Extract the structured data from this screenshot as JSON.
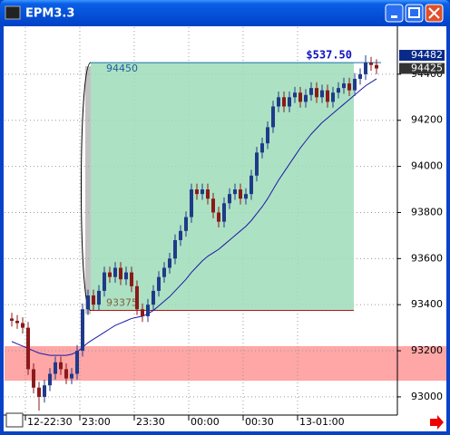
{
  "window_title": "EPM3.3",
  "chart_data": {
    "type": "candlestick",
    "categories": [
      null,
      null,
      null,
      "12-22:30",
      null,
      null,
      null,
      null,
      null,
      null,
      null,
      null,
      null,
      "23:00",
      null,
      null,
      null,
      null,
      null,
      null,
      null,
      null,
      null,
      "23:30",
      null,
      null,
      null,
      null,
      null,
      null,
      null,
      null,
      null,
      "00:00",
      null,
      null,
      null,
      null,
      null,
      null,
      null,
      null,
      null,
      "00:30",
      null,
      null,
      null,
      null,
      null,
      null,
      null,
      null,
      null,
      "13-01:00",
      null,
      null,
      null,
      null,
      null,
      null,
      null,
      null,
      null,
      null,
      null,
      null,
      null,
      null
    ],
    "open": [
      93340,
      93330,
      93320,
      93300,
      93120,
      93040,
      93000,
      93050,
      93100,
      93150,
      93120,
      93080,
      93100,
      93200,
      93380,
      93440,
      93400,
      93460,
      93540,
      93520,
      93560,
      93510,
      93540,
      93480,
      93380,
      93350,
      93400,
      93460,
      93520,
      93560,
      93600,
      93680,
      93720,
      93780,
      93900,
      93880,
      93900,
      93860,
      93800,
      93760,
      93840,
      93880,
      93900,
      93860,
      93880,
      93960,
      94060,
      94100,
      94170,
      94260,
      94300,
      94260,
      94300,
      94320,
      94280,
      94310,
      94340,
      94300,
      94330,
      94280,
      94320,
      94340,
      94360,
      94330,
      94380,
      94400,
      94450,
      94440
    ],
    "high": [
      93365,
      93355,
      93345,
      93325,
      93145,
      93065,
      93075,
      93125,
      93175,
      93175,
      93145,
      93125,
      93225,
      93405,
      93465,
      93465,
      93485,
      93565,
      93565,
      93585,
      93585,
      93565,
      93565,
      93505,
      93405,
      93425,
      93485,
      93545,
      93585,
      93625,
      93705,
      93745,
      93805,
      93925,
      93925,
      93925,
      93925,
      93885,
      93825,
      93865,
      93905,
      93925,
      93925,
      93905,
      93985,
      94085,
      94125,
      94195,
      94285,
      94325,
      94325,
      94325,
      94345,
      94345,
      94335,
      94365,
      94365,
      94355,
      94355,
      94345,
      94365,
      94385,
      94385,
      94405,
      94425,
      94482,
      94475,
      94465
    ],
    "low": [
      93305,
      93295,
      93275,
      93095,
      93015,
      92940,
      92975,
      93025,
      93075,
      93095,
      93055,
      93055,
      93075,
      93175,
      93355,
      93375,
      93375,
      93435,
      93495,
      93495,
      93485,
      93485,
      93455,
      93355,
      93325,
      93325,
      93375,
      93435,
      93495,
      93535,
      93575,
      93655,
      93695,
      93755,
      93855,
      93855,
      93835,
      93775,
      93735,
      93735,
      93815,
      93855,
      93835,
      93835,
      93855,
      93935,
      94035,
      94075,
      94145,
      94235,
      94235,
      94235,
      94275,
      94255,
      94255,
      94285,
      94275,
      94275,
      94255,
      94255,
      94295,
      94315,
      94305,
      94305,
      94355,
      94375,
      94415,
      94400
    ],
    "close": [
      93330,
      93320,
      93300,
      93120,
      93040,
      93000,
      93050,
      93100,
      93150,
      93120,
      93080,
      93100,
      93200,
      93380,
      93440,
      93400,
      93460,
      93540,
      93520,
      93560,
      93510,
      93540,
      93480,
      93380,
      93350,
      93400,
      93460,
      93520,
      93560,
      93600,
      93680,
      93720,
      93780,
      93900,
      93880,
      93900,
      93860,
      93800,
      93760,
      93840,
      93880,
      93900,
      93860,
      93880,
      93960,
      94060,
      94100,
      94170,
      94260,
      94300,
      94260,
      94300,
      94320,
      94280,
      94310,
      94340,
      94300,
      94330,
      94280,
      94320,
      94340,
      94360,
      94330,
      94380,
      94400,
      94450,
      94440,
      94425
    ],
    "up_color": "#1f3a8a",
    "down_color": "#8b1a1a",
    "moving_average": {
      "color": "#1a1aa8",
      "values": [
        93240,
        93230,
        93220,
        93210,
        93200,
        93190,
        93185,
        93180,
        93180,
        93180,
        93180,
        93185,
        93195,
        93215,
        93235,
        93250,
        93265,
        93280,
        93295,
        93310,
        93320,
        93330,
        93340,
        93345,
        93350,
        93360,
        93375,
        93395,
        93415,
        93435,
        93460,
        93485,
        93510,
        93540,
        93565,
        93590,
        93610,
        93625,
        93640,
        93660,
        93680,
        93700,
        93720,
        93740,
        93765,
        93795,
        93825,
        93860,
        93900,
        93940,
        93975,
        94010,
        94045,
        94080,
        94110,
        94140,
        94165,
        94190,
        94210,
        94230,
        94250,
        94270,
        94290,
        94310,
        94330,
        94350,
        94365,
        94380
      ]
    },
    "ylim": [
      92921,
      94604
    ],
    "yticks": [
      93000,
      93200,
      93400,
      93600,
      93800,
      94000,
      94200,
      94400
    ],
    "grid": true,
    "target_box": {
      "top": 94450,
      "bottom": 93375,
      "color": "#9fdcb8"
    },
    "zone": {
      "from": 93070,
      "to": 93220,
      "color": "#ff9c9c"
    },
    "profit_label": "$537.50",
    "price_markers": [
      {
        "value": 94482,
        "color": "#0a2a8a"
      },
      {
        "value": 94425,
        "color": "#333333"
      }
    ]
  }
}
